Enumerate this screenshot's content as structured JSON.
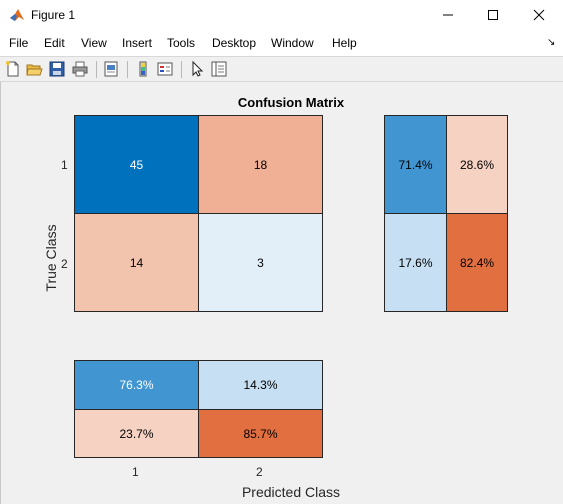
{
  "window": {
    "title": "Figure 1",
    "icon": "matlab-icon"
  },
  "menu": [
    "File",
    "Edit",
    "View",
    "Insert",
    "Tools",
    "Desktop",
    "Window",
    "Help"
  ],
  "toolbar": [
    "new-figure-icon",
    "open-file-icon",
    "save-icon",
    "print-icon",
    "print-preview-icon",
    "colorbar-icon",
    "legend-icon",
    "select-arrow-icon",
    "property-inspector-icon"
  ],
  "chart": {
    "title": "Confusion Matrix",
    "xlabel": "Predicted Class",
    "ylabel": "True Class",
    "classes": [
      "1",
      "2"
    ],
    "matrix": [
      [
        "45",
        "18"
      ],
      [
        "14",
        "3"
      ]
    ],
    "row_summary": [
      [
        "71.4%",
        "28.6%"
      ],
      [
        "17.6%",
        "82.4%"
      ]
    ],
    "column_summary": [
      [
        "76.3%",
        "14.3%"
      ],
      [
        "23.7%",
        "85.7%"
      ]
    ],
    "colors": {
      "dark_blue": "#0072bd",
      "mid_blue": "#4196d2",
      "light_blue": "#c6dff2",
      "pale_blue": "#e2eef8",
      "dark_orange": "#e26f3f",
      "salmon": "#f0b095",
      "light_salmon": "#f2c4ae",
      "pale_salmon": "#f5d2c1"
    }
  },
  "chart_data": {
    "type": "heatmap",
    "title": "Confusion Matrix",
    "xlabel": "Predicted Class",
    "ylabel": "True Class",
    "x": [
      "1",
      "2"
    ],
    "y": [
      "1",
      "2"
    ],
    "values": [
      [
        45,
        18
      ],
      [
        14,
        3
      ]
    ],
    "row_summary_percent": [
      [
        71.4,
        28.6
      ],
      [
        17.6,
        82.4
      ]
    ],
    "column_summary_percent": [
      [
        76.3,
        14.3
      ],
      [
        23.7,
        85.7
      ]
    ]
  }
}
